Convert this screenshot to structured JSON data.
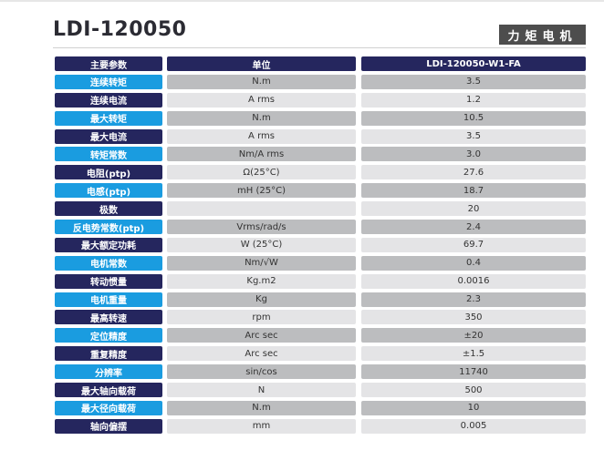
{
  "title": "LDI-120050",
  "badge": "力矩电机",
  "table": {
    "headers": [
      "主要参数",
      "单位",
      "LDI-120050-W1-FA"
    ],
    "rows": [
      {
        "param": "连续转矩",
        "unit": "N.m",
        "value": "3.5"
      },
      {
        "param": "连续电流",
        "unit": "A rms",
        "value": "1.2"
      },
      {
        "param": "最大转矩",
        "unit": "N.m",
        "value": "10.5"
      },
      {
        "param": "最大电流",
        "unit": "A rms",
        "value": "3.5"
      },
      {
        "param": "转矩常数",
        "unit": "Nm/A rms",
        "value": "3.0"
      },
      {
        "param": "电阻(ptp)",
        "unit": "Ω(25°C)",
        "value": "27.6"
      },
      {
        "param": "电感(ptp)",
        "unit": "mH (25°C)",
        "value": "18.7"
      },
      {
        "param": "极数",
        "unit": "",
        "value": "20"
      },
      {
        "param": "反电势常数(ptp)",
        "unit": "Vrms/rad/s",
        "value": "2.4"
      },
      {
        "param": "最大额定功耗",
        "unit": "W (25°C)",
        "value": "69.7"
      },
      {
        "param": "电机常数",
        "unit": "Nm/√W",
        "value": "0.4"
      },
      {
        "param": "转动惯量",
        "unit": "Kg.m2",
        "value": "0.0016"
      },
      {
        "param": "电机重量",
        "unit": "Kg",
        "value": "2.3"
      },
      {
        "param": "最高转速",
        "unit": "rpm",
        "value": "350"
      },
      {
        "param": "定位精度",
        "unit": "Arc sec",
        "value": "±20"
      },
      {
        "param": "重复精度",
        "unit": "Arc sec",
        "value": "±1.5"
      },
      {
        "param": "分辨率",
        "unit": "sin/cos",
        "value": "11740"
      },
      {
        "param": "最大轴向载荷",
        "unit": "N",
        "value": "500"
      },
      {
        "param": "最大径向载荷",
        "unit": "N.m",
        "value": "10"
      },
      {
        "param": "轴向偏摆",
        "unit": "mm",
        "value": "0.005"
      }
    ]
  },
  "colors": {
    "navy": "#25265e",
    "blue": "#1a9ce0",
    "gray_dark": "#bcbdbf",
    "gray_light": "#e4e4e6"
  }
}
